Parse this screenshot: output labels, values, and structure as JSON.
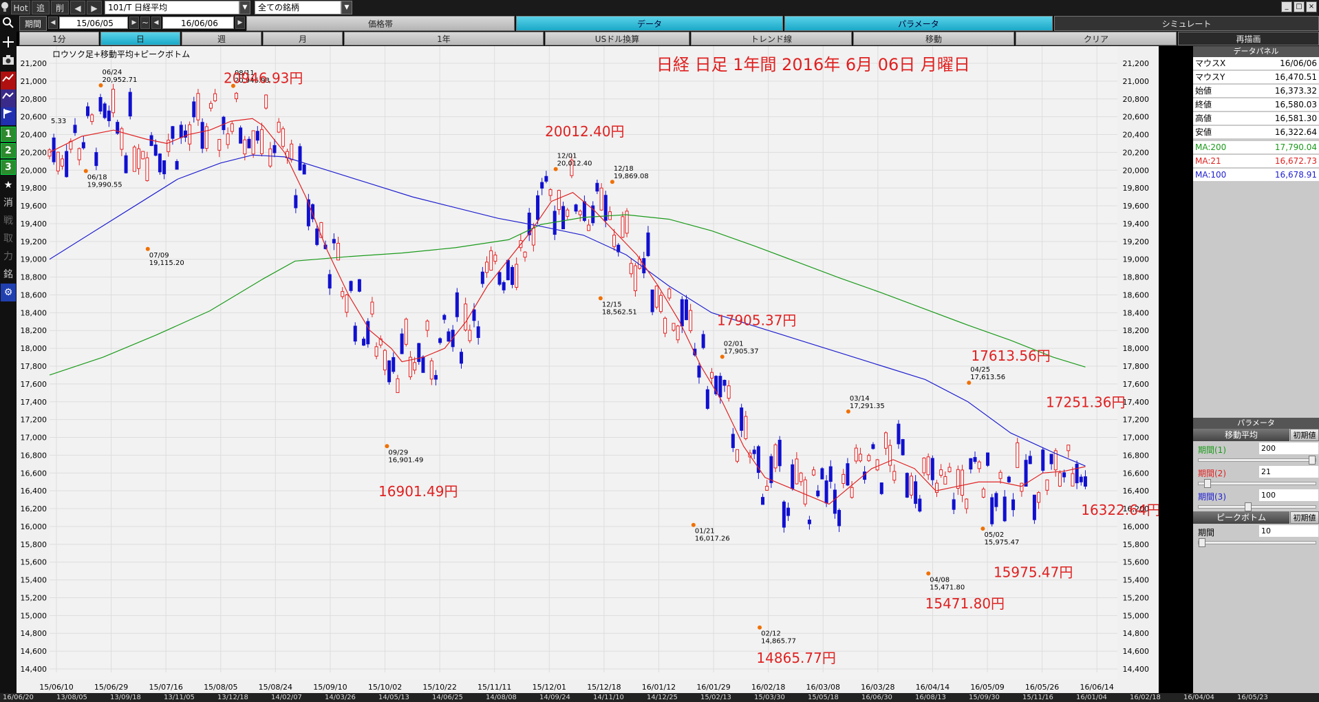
{
  "toolbar": {
    "hot": "Hot",
    "tsui": "追",
    "sakujo": "削",
    "symbol": "101/T 日経平均",
    "all_symbols": "全ての銘柄"
  },
  "period_bar": {
    "label": "期間",
    "start": "15/06/05",
    "tilde": "~",
    "end": "16/06/06",
    "tabs": [
      "価格帯",
      "データ",
      "パラメータ",
      "シミュレート"
    ]
  },
  "interval_bar": {
    "tabs": [
      "1分",
      "日",
      "週",
      "月",
      "1年",
      "USドル換算",
      "トレンド線",
      "移動",
      "クリア",
      "再描画"
    ]
  },
  "sidebar": {
    "buttons": [
      "1",
      "2",
      "3",
      "消",
      "戦",
      "取",
      "力",
      "銘"
    ]
  },
  "colors": {
    "ma200": "#1a9a1a",
    "ma21": "#e02020",
    "ma100": "#2020d0",
    "up_candle": "#e02020",
    "down_candle": "#1010d0",
    "annotation": "#e02020"
  },
  "chart": {
    "label": "ロウソク足+移動平均+ピークボトム",
    "heading": "日経 日足 1年間 2016年 6月 06日 月曜日",
    "left_edge_label": "5.33"
  },
  "chart_data": {
    "type": "line",
    "ylim": [
      14400,
      21200
    ],
    "yticks": [
      21200,
      21000,
      20800,
      20600,
      20400,
      20200,
      20000,
      19800,
      19600,
      19400,
      19200,
      19000,
      18800,
      18600,
      18400,
      18200,
      18000,
      17800,
      17600,
      17400,
      17200,
      17000,
      16800,
      16600,
      16400,
      16200,
      16000,
      15800,
      15600,
      15400,
      15200,
      15000,
      14800,
      14600,
      14400
    ],
    "xticks": [
      "15/06/10",
      "15/06/29",
      "15/07/16",
      "15/08/05",
      "15/08/24",
      "15/09/10",
      "15/10/02",
      "15/10/22",
      "15/11/11",
      "15/12/01",
      "15/12/18",
      "16/01/12",
      "16/01/29",
      "16/02/18",
      "16/03/08",
      "16/03/28",
      "16/04/14",
      "16/05/09",
      "16/05/26",
      "16/06/14"
    ],
    "peaks": [
      {
        "date": "06/24",
        "value": "20,952.71",
        "x": 0.048,
        "y": 20952.71
      },
      {
        "date": "08/11",
        "value": "20,946.93",
        "x": 0.172,
        "y": 20946.93
      },
      {
        "date": "12/01",
        "value": "20,012.40",
        "x": 0.474,
        "y": 20012.4
      },
      {
        "date": "12/18",
        "value": "19,869.08",
        "x": 0.527,
        "y": 19869.08
      },
      {
        "date": "02/01",
        "value": "17,905.37",
        "x": 0.63,
        "y": 17905.37
      },
      {
        "date": "03/14",
        "value": "17,291.35",
        "x": 0.748,
        "y": 17291.35
      },
      {
        "date": "04/25",
        "value": "17,613.56",
        "x": 0.861,
        "y": 17613.56
      }
    ],
    "bottoms": [
      {
        "date": "06/18",
        "value": "19,990.55",
        "x": 0.034,
        "y": 19990.55
      },
      {
        "date": "07/09",
        "value": "19,115.20",
        "x": 0.092,
        "y": 19115.2
      },
      {
        "date": "09/29",
        "value": "16,901.49",
        "x": 0.316,
        "y": 16901.49
      },
      {
        "date": "12/15",
        "value": "18,562.51",
        "x": 0.516,
        "y": 18562.51
      },
      {
        "date": "01/21",
        "value": "16,017.26",
        "x": 0.603,
        "y": 16017.26
      },
      {
        "date": "02/12",
        "value": "14,865.77",
        "x": 0.665,
        "y": 14865.77
      },
      {
        "date": "04/08",
        "value": "15,471.80",
        "x": 0.823,
        "y": 15471.8
      },
      {
        "date": "05/02",
        "value": "15,975.47",
        "x": 0.874,
        "y": 15975.47
      }
    ],
    "big_labels": [
      {
        "text": "20946.93円",
        "x": 0.163,
        "y": 20980
      },
      {
        "text": "16901.49円",
        "x": 0.308,
        "y": 16340
      },
      {
        "text": "20012.40円",
        "x": 0.464,
        "y": 20380
      },
      {
        "text": "17905.37円",
        "x": 0.625,
        "y": 18260
      },
      {
        "text": "14865.77円",
        "x": 0.662,
        "y": 14470
      },
      {
        "text": "15471.80円",
        "x": 0.82,
        "y": 15080
      },
      {
        "text": "15975.47円",
        "x": 0.884,
        "y": 15430
      },
      {
        "text": "17613.56円",
        "x": 0.863,
        "y": 17860
      },
      {
        "text": "17251.36円",
        "x": 0.933,
        "y": 17340
      },
      {
        "text": "16322.64円",
        "x": 0.966,
        "y": 16130
      }
    ],
    "ma200": [
      [
        0.0,
        17700
      ],
      [
        0.05,
        17900
      ],
      [
        0.1,
        18150
      ],
      [
        0.15,
        18420
      ],
      [
        0.2,
        18780
      ],
      [
        0.23,
        18980
      ],
      [
        0.28,
        19030
      ],
      [
        0.33,
        19070
      ],
      [
        0.38,
        19130
      ],
      [
        0.43,
        19220
      ],
      [
        0.46,
        19390
      ],
      [
        0.5,
        19470
      ],
      [
        0.54,
        19500
      ],
      [
        0.58,
        19450
      ],
      [
        0.62,
        19320
      ],
      [
        0.66,
        19150
      ],
      [
        0.7,
        18970
      ],
      [
        0.74,
        18790
      ],
      [
        0.78,
        18620
      ],
      [
        0.82,
        18440
      ],
      [
        0.86,
        18260
      ],
      [
        0.9,
        18090
      ],
      [
        0.94,
        17900
      ],
      [
        0.97,
        17790
      ]
    ],
    "ma21": [
      [
        0.0,
        20200
      ],
      [
        0.03,
        20380
      ],
      [
        0.06,
        20450
      ],
      [
        0.09,
        20350
      ],
      [
        0.11,
        20300
      ],
      [
        0.13,
        20400
      ],
      [
        0.15,
        20450
      ],
      [
        0.17,
        20550
      ],
      [
        0.19,
        20580
      ],
      [
        0.2,
        20500
      ],
      [
        0.22,
        20200
      ],
      [
        0.24,
        19700
      ],
      [
        0.26,
        19100
      ],
      [
        0.28,
        18600
      ],
      [
        0.3,
        18200
      ],
      [
        0.32,
        18000
      ],
      [
        0.33,
        17850
      ],
      [
        0.35,
        17900
      ],
      [
        0.37,
        18000
      ],
      [
        0.39,
        18300
      ],
      [
        0.41,
        18700
      ],
      [
        0.43,
        19000
      ],
      [
        0.45,
        19300
      ],
      [
        0.47,
        19650
      ],
      [
        0.49,
        19750
      ],
      [
        0.51,
        19550
      ],
      [
        0.53,
        19300
      ],
      [
        0.55,
        19050
      ],
      [
        0.57,
        18700
      ],
      [
        0.59,
        18300
      ],
      [
        0.61,
        17800
      ],
      [
        0.63,
        17400
      ],
      [
        0.65,
        16900
      ],
      [
        0.67,
        16550
      ],
      [
        0.69,
        16450
      ],
      [
        0.71,
        16350
      ],
      [
        0.73,
        16250
      ],
      [
        0.75,
        16450
      ],
      [
        0.77,
        16650
      ],
      [
        0.79,
        16750
      ],
      [
        0.81,
        16650
      ],
      [
        0.83,
        16400
      ],
      [
        0.85,
        16450
      ],
      [
        0.87,
        16500
      ],
      [
        0.89,
        16500
      ],
      [
        0.91,
        16450
      ],
      [
        0.93,
        16600
      ],
      [
        0.95,
        16620
      ],
      [
        0.97,
        16672
      ]
    ],
    "ma100": [
      [
        0.0,
        19000
      ],
      [
        0.04,
        19300
      ],
      [
        0.08,
        19600
      ],
      [
        0.12,
        19900
      ],
      [
        0.16,
        20080
      ],
      [
        0.19,
        20170
      ],
      [
        0.22,
        20150
      ],
      [
        0.26,
        20000
      ],
      [
        0.3,
        19850
      ],
      [
        0.34,
        19700
      ],
      [
        0.38,
        19580
      ],
      [
        0.42,
        19460
      ],
      [
        0.46,
        19370
      ],
      [
        0.5,
        19270
      ],
      [
        0.54,
        19050
      ],
      [
        0.58,
        18700
      ],
      [
        0.62,
        18400
      ],
      [
        0.66,
        18250
      ],
      [
        0.7,
        18100
      ],
      [
        0.74,
        17950
      ],
      [
        0.78,
        17800
      ],
      [
        0.82,
        17650
      ],
      [
        0.86,
        17400
      ],
      [
        0.9,
        17050
      ],
      [
        0.94,
        16830
      ],
      [
        0.97,
        16679
      ]
    ]
  },
  "data_panel": {
    "title": "データパネル",
    "rows": [
      {
        "label": "マウスX",
        "value": "16/06/06"
      },
      {
        "label": "マウスY",
        "value": "16,470.51"
      },
      {
        "label": "始値",
        "value": "16,373.32"
      },
      {
        "label": "終値",
        "value": "16,580.03"
      },
      {
        "label": "高値",
        "value": "16,581.30"
      },
      {
        "label": "安値",
        "value": "16,322.64"
      },
      {
        "label": "MA:200",
        "value": "17,790.04"
      },
      {
        "label": "MA:21",
        "value": "16,672.73"
      },
      {
        "label": "MA:100",
        "value": "16,678.91"
      }
    ]
  },
  "params": {
    "title": "パラメータ",
    "ma_section": "移動平均",
    "reset": "初期値",
    "items": [
      {
        "label": "期間(1)",
        "value": "200",
        "fill": 1.0
      },
      {
        "label": "期間(2)",
        "value": "21",
        "fill": 0.05
      },
      {
        "label": "期間(3)",
        "value": "100",
        "fill": 0.42
      }
    ],
    "peak_section": "ピークボトム",
    "peak_item": {
      "label": "期間",
      "value": "10",
      "fill": 0.0
    }
  },
  "bottom_strip": {
    "labels": [
      "16/06/20",
      "13/08/05",
      "13/09/18",
      "13/11/05",
      "13/12/18",
      "14/02/07",
      "14/03/26",
      "14/05/13",
      "14/06/25",
      "14/08/08",
      "14/09/24",
      "14/11/10",
      "14/12/25",
      "15/02/13",
      "15/03/30",
      "15/05/18",
      "16/06/30",
      "16/08/13",
      "15/09/30",
      "15/11/16",
      "16/01/04",
      "16/02/18",
      "16/04/04",
      "16/05/23"
    ]
  }
}
